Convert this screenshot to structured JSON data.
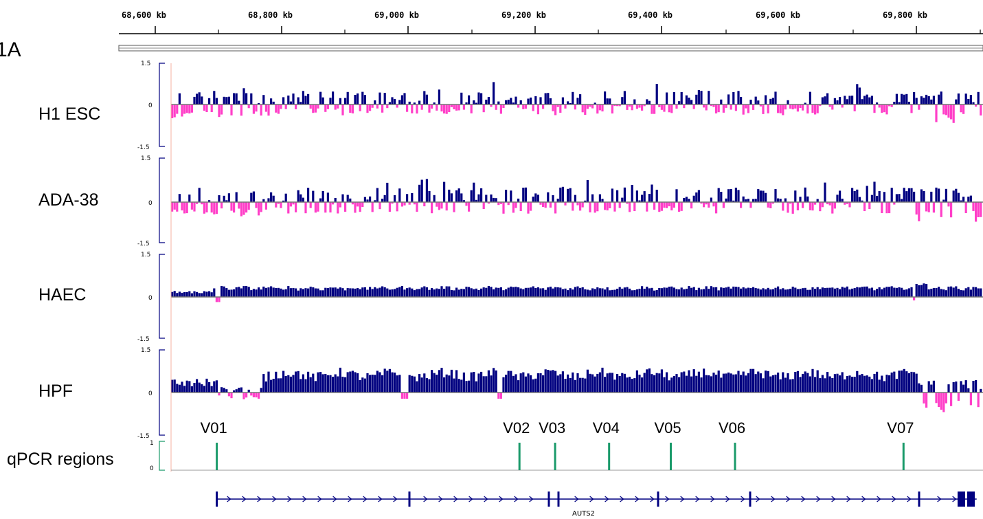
{
  "figure_label": "1A",
  "chart_data": {
    "type": "bar",
    "ruler": {
      "unit": "kb",
      "ticks": [
        "68,600 kb",
        "68,800 kb",
        "69,000 kb",
        "69,200 kb",
        "69,400 kb",
        "69,600 kb",
        "69,800 kb"
      ]
    },
    "y_axis": {
      "max_label": "1.5",
      "zero_label": "0",
      "min_label": "-1.5",
      "ylim": [
        -1.5,
        1.5
      ]
    },
    "colors": {
      "positive": "#000080",
      "negative": "#ff3fc8",
      "qpcr": "#1a9a6a",
      "gene": "#000080"
    },
    "series": [
      {
        "name": "H1 ESC",
        "profile": "mixed"
      },
      {
        "name": "ADA-38",
        "profile": "mixed"
      },
      {
        "name": "HAEC",
        "profile": "positive"
      },
      {
        "name": "HPF",
        "profile": "positive-high"
      }
    ],
    "qpcr": {
      "track_name": "qPCR regions",
      "max_label": "1",
      "zero_label": "0",
      "regions": [
        {
          "name": "V01",
          "position_kb": 68700
        },
        {
          "name": "V02",
          "position_kb": 69176
        },
        {
          "name": "V03",
          "position_kb": 69232
        },
        {
          "name": "V04",
          "position_kb": 69317
        },
        {
          "name": "V05",
          "position_kb": 69414
        },
        {
          "name": "V06",
          "position_kb": 69515
        },
        {
          "name": "V07",
          "position_kb": 69780
        }
      ]
    },
    "gene": {
      "name": "AUTS2",
      "start_kb": 68700,
      "end_kb": 69895
    },
    "xlim_kb": [
      68628,
      69905
    ]
  }
}
